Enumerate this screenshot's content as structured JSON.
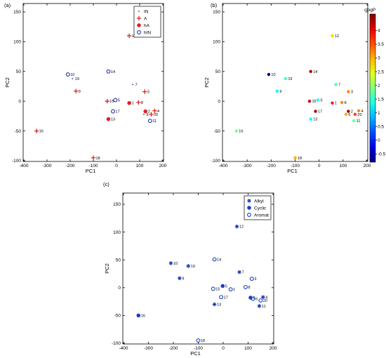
{
  "chart_data": [
    {
      "type": "scatter",
      "panel_label": "(a)",
      "xlabel": "PC1",
      "ylabel": "PC2",
      "xlim": [
        -400,
        200
      ],
      "ylim": [
        -100,
        150
      ],
      "xticks": [
        -400,
        -300,
        -200,
        -100,
        0,
        100,
        200
      ],
      "yticks": [
        -100,
        -50,
        0,
        50,
        100,
        150
      ],
      "legend_position": "top-right",
      "legend": [
        {
          "key": "IN",
          "label": "IN",
          "marker": "dot",
          "color": "#2233aa"
        },
        {
          "key": "A",
          "label": "A",
          "marker": "plus",
          "color": "#dd2222"
        },
        {
          "key": "hA",
          "label": "hA",
          "marker": "filled-circle",
          "color": "#dd2222"
        },
        {
          "key": "hIN",
          "label": "hIN",
          "marker": "open-circle",
          "color": "#2233aa"
        }
      ],
      "points": [
        {
          "label": "1",
          "x": 55,
          "y": -3,
          "cls": "hA"
        },
        {
          "label": "2",
          "x": 125,
          "y": -17,
          "cls": "hA"
        },
        {
          "label": "3",
          "x": 122,
          "y": 16,
          "cls": "A"
        },
        {
          "label": "4",
          "x": 165,
          "y": -16,
          "cls": "A"
        },
        {
          "label": "5",
          "x": -5,
          "y": 2,
          "cls": "hIN"
        },
        {
          "label": "6",
          "x": 118,
          "y": -22,
          "cls": "IN"
        },
        {
          "label": "7",
          "x": 70,
          "y": 28,
          "cls": "IN"
        },
        {
          "label": "8",
          "x": 95,
          "y": -2,
          "cls": "A"
        },
        {
          "label": "9",
          "x": -175,
          "y": 17,
          "cls": "A"
        },
        {
          "label": "10",
          "x": -210,
          "y": 45,
          "cls": "hIN"
        },
        {
          "label": "11",
          "x": 145,
          "y": -33,
          "cls": "hIN"
        },
        {
          "label": "12",
          "x": 55,
          "y": 110,
          "cls": "A"
        },
        {
          "label": "13",
          "x": -35,
          "y": -30,
          "cls": "hA"
        },
        {
          "label": "14",
          "x": -35,
          "y": 50,
          "cls": "hIN"
        },
        {
          "label": "15",
          "x": -40,
          "y": 0,
          "cls": "A"
        },
        {
          "label": "16",
          "x": -345,
          "y": -50,
          "cls": "A"
        },
        {
          "label": "17",
          "x": -15,
          "y": -17,
          "cls": "hIN"
        },
        {
          "label": "18",
          "x": -100,
          "y": -95,
          "cls": "A"
        },
        {
          "label": "19",
          "x": -190,
          "y": 38,
          "cls": "IN"
        },
        {
          "label": "20",
          "x": 150,
          "y": -22,
          "cls": "A"
        }
      ]
    },
    {
      "type": "scatter",
      "panel_label": "(b)",
      "xlabel": "PC1",
      "ylabel": "PC2",
      "xlim": [
        -400,
        200
      ],
      "ylim": [
        -100,
        150
      ],
      "xticks": [
        -400,
        -300,
        -200,
        -100,
        0,
        100,
        200
      ],
      "yticks": [
        -100,
        -50,
        0,
        50,
        100,
        150
      ],
      "colorbar": {
        "title": "clogP",
        "range": [
          -0.8,
          4.6
        ],
        "ticks": [
          -0.5,
          0,
          0.5,
          1,
          1.5,
          2,
          2.5,
          3,
          3.5,
          4
        ],
        "tick_labels": [
          "-0.5",
          "0",
          "0.5",
          "1",
          "1.5",
          "2",
          "2.5",
          "3",
          "3.5",
          "4"
        ]
      },
      "points": [
        {
          "label": "1",
          "x": 55,
          "y": -3,
          "c": 3.8
        },
        {
          "label": "2",
          "x": 122,
          "y": -17,
          "c": 4.4
        },
        {
          "label": "3",
          "x": 122,
          "y": 16,
          "c": 3.2
        },
        {
          "label": "4",
          "x": 165,
          "y": -16,
          "c": 3.2
        },
        {
          "label": "5",
          "x": -5,
          "y": 2,
          "c": 1.4
        },
        {
          "label": "6",
          "x": 112,
          "y": -22,
          "c": 3.0
        },
        {
          "label": "7",
          "x": 70,
          "y": 28,
          "c": 1.6
        },
        {
          "label": "8",
          "x": 95,
          "y": -2,
          "c": 3.2
        },
        {
          "label": "9",
          "x": -175,
          "y": 17,
          "c": 1.2
        },
        {
          "label": "10",
          "x": -210,
          "y": 45,
          "c": -0.8
        },
        {
          "label": "11",
          "x": 145,
          "y": -33,
          "c": 1.8
        },
        {
          "label": "12",
          "x": 55,
          "y": 110,
          "c": 2.8
        },
        {
          "label": "13",
          "x": -35,
          "y": -30,
          "c": 1.2
        },
        {
          "label": "14",
          "x": -35,
          "y": 50,
          "c": 4.4
        },
        {
          "label": "15",
          "x": -40,
          "y": 0,
          "c": 4.2
        },
        {
          "label": "16",
          "x": -345,
          "y": -50,
          "c": 1.8
        },
        {
          "label": "17",
          "x": -15,
          "y": -17,
          "c": 4.4
        },
        {
          "label": "18",
          "x": -100,
          "y": -95,
          "c": 3.0
        },
        {
          "label": "19",
          "x": -140,
          "y": 38,
          "c": 1.6
        },
        {
          "label": "20",
          "x": 150,
          "y": -22,
          "c": 3.6
        }
      ]
    },
    {
      "type": "scatter",
      "panel_label": "(c)",
      "xlabel": "PC1",
      "ylabel": "PC2",
      "xlim": [
        -400,
        200
      ],
      "ylim": [
        -100,
        150
      ],
      "xticks": [
        -400,
        -300,
        -200,
        -100,
        0,
        100,
        200
      ],
      "yticks": [
        -100,
        -50,
        0,
        50,
        100,
        150
      ],
      "legend_position": "top-right",
      "legend": [
        {
          "key": "Alkyl",
          "label": "Alkyl",
          "marker": "star",
          "color": "#1a3fbf"
        },
        {
          "key": "Cyclic",
          "label": "Cyclic",
          "marker": "filled-circle",
          "color": "#1a3fbf"
        },
        {
          "key": "Aromat",
          "label": "Aromat",
          "marker": "open-circle",
          "color": "#1a3fbf"
        }
      ],
      "points": [
        {
          "label": "1",
          "x": 30,
          "y": -3,
          "cls": "Aromat"
        },
        {
          "label": "2",
          "x": 110,
          "y": -18,
          "cls": "Cyclic"
        },
        {
          "label": "3",
          "x": 115,
          "y": 16,
          "cls": "Aromat"
        },
        {
          "label": "4",
          "x": 160,
          "y": -17,
          "cls": "Alkyl"
        },
        {
          "label": "5",
          "x": -2,
          "y": 3,
          "cls": "Cyclic"
        },
        {
          "label": "6",
          "x": 120,
          "y": -20,
          "cls": "Aromat"
        },
        {
          "label": "7",
          "x": 65,
          "y": 28,
          "cls": "Alkyl"
        },
        {
          "label": "8",
          "x": 90,
          "y": 1,
          "cls": "Aromat"
        },
        {
          "label": "9",
          "x": -175,
          "y": 17,
          "cls": "Alkyl"
        },
        {
          "label": "10",
          "x": -210,
          "y": 44,
          "cls": "Alkyl"
        },
        {
          "label": "11",
          "x": 145,
          "y": -33,
          "cls": "Alkyl"
        },
        {
          "label": "12",
          "x": 55,
          "y": 110,
          "cls": "Alkyl"
        },
        {
          "label": "13",
          "x": -35,
          "y": -30,
          "cls": "Alkyl"
        },
        {
          "label": "14",
          "x": -35,
          "y": 51,
          "cls": "Aromat"
        },
        {
          "label": "15",
          "x": -40,
          "y": -2,
          "cls": "Aromat"
        },
        {
          "label": "16",
          "x": -340,
          "y": -50,
          "cls": "Cyclic"
        },
        {
          "label": "17",
          "x": -8,
          "y": -17,
          "cls": "Aromat"
        },
        {
          "label": "18",
          "x": -100,
          "y": -95,
          "cls": "Aromat"
        },
        {
          "label": "19",
          "x": -140,
          "y": 39,
          "cls": "Alkyl"
        },
        {
          "label": "20",
          "x": 150,
          "y": -23,
          "cls": "Aromat"
        }
      ]
    }
  ]
}
